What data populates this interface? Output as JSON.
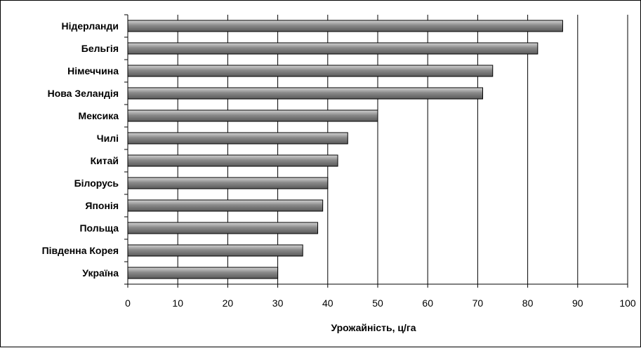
{
  "chart_data": {
    "type": "bar",
    "orientation": "horizontal",
    "categories": [
      "Нідерланди",
      "Бельгія",
      "Німеччина",
      "Нова Зеландія",
      "Мексика",
      "Чилі",
      "Китай",
      "Білорусь",
      "Японія",
      "Польща",
      "Південна Корея",
      "Україна"
    ],
    "values": [
      87,
      82,
      73,
      71,
      50,
      44,
      42,
      40,
      39,
      38,
      35,
      30
    ],
    "xlabel": "Урожайність, ц/га",
    "ylabel": "",
    "title": "",
    "xlim": [
      0,
      100
    ],
    "xticks": [
      0,
      10,
      20,
      30,
      40,
      50,
      60,
      70,
      80,
      90,
      100
    ],
    "grid": "vertical",
    "legend": "none",
    "colors": {
      "bar": "#8c8c8c",
      "bar_edge": "#000000",
      "grid": "#000000",
      "background": "#ffffff"
    }
  }
}
